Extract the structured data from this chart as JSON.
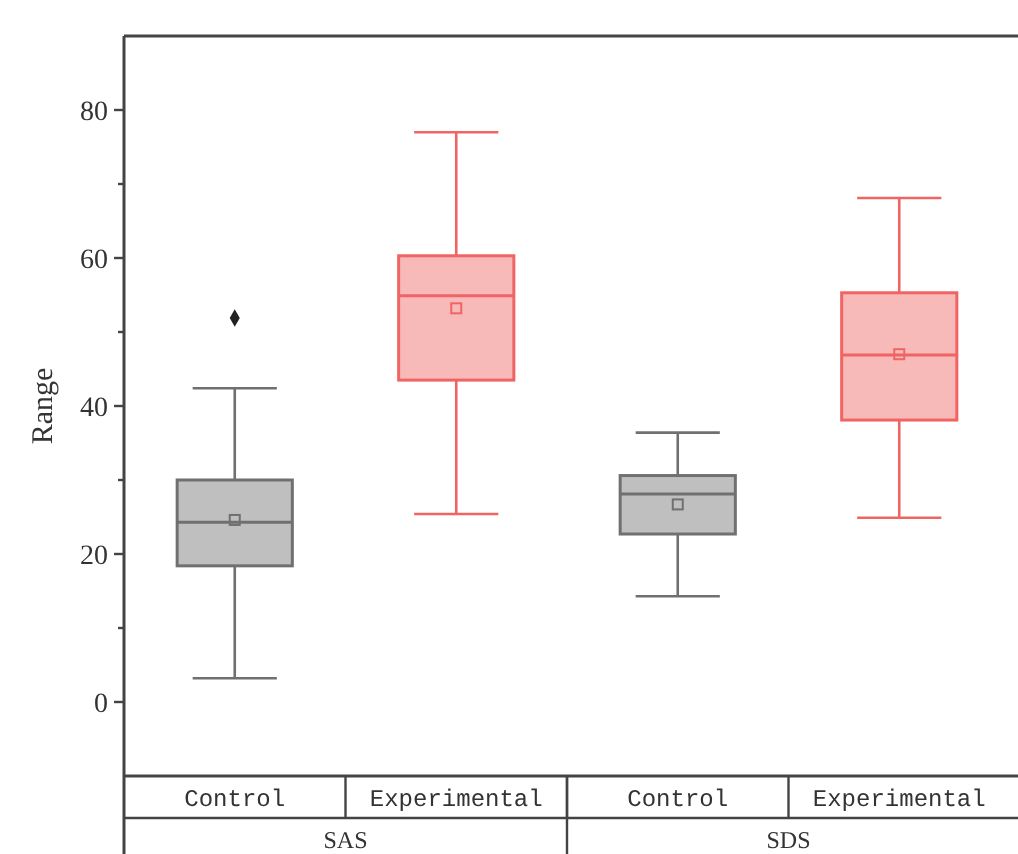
{
  "chart_data": {
    "type": "box",
    "ylabel": "Range",
    "categories": [
      "Control",
      "Experimental",
      "Control",
      "Experimental"
    ],
    "annotations": [
      "SAS",
      "SDS"
    ],
    "colors": [
      "#707070",
      "#f06464",
      "#707070",
      "#f06464"
    ],
    "ylim": [
      -10,
      90
    ],
    "yticks": [
      {
        "value": 0,
        "label": "0"
      },
      {
        "value": 10,
        "label": null
      },
      {
        "value": 20,
        "label": "20"
      },
      {
        "value": 30,
        "label": null
      },
      {
        "value": 40,
        "label": "40"
      },
      {
        "value": 50,
        "label": null
      },
      {
        "value": 60,
        "label": "60"
      },
      {
        "value": 70,
        "label": null
      },
      {
        "value": 80,
        "label": "80"
      }
    ],
    "boxes": [
      {
        "low": 3.2,
        "q1": 18.4,
        "median": 24.3,
        "q3": 30,
        "high": 42.4,
        "mean": 24.6,
        "outliers": [
          51.9
        ]
      },
      {
        "low": 25.4,
        "q1": 43.5,
        "median": 54.9,
        "q3": 60.3,
        "high": 77,
        "mean": 53.2
      },
      {
        "low": 14.3,
        "q1": 22.7,
        "median": 28.1,
        "q3": 30.6,
        "high": 36.4,
        "mean": 26.7
      },
      {
        "low": 24.9,
        "q1": 38.1,
        "median": 46.9,
        "q3": 55.3,
        "high": 68.1,
        "mean": 47
      }
    ]
  }
}
